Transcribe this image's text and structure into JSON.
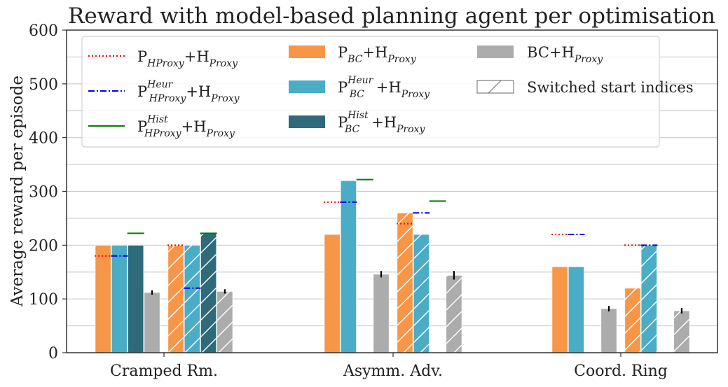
{
  "chart_data": {
    "type": "bar",
    "title": "Reward with model-based planning agent per optimisation",
    "ylabel": "Average reward per episode",
    "xlabel": "",
    "ylim": [
      0,
      600
    ],
    "yticks": [
      0,
      100,
      200,
      300,
      400,
      500,
      600
    ],
    "grid": true,
    "legend_position": "top",
    "categories": [
      "Cramped Rm.",
      "Asymm. Adv.",
      "Coord. Ring"
    ],
    "colors": {
      "P_BC": "#f79646",
      "P_BC_Heur": "#4bacc6",
      "P_BC_Hist": "#2e6a7a",
      "BC": "#acacac",
      "line_H": "#ff0000",
      "line_Heur": "#0000ee",
      "line_Hist": "#008000"
    },
    "legend": [
      {
        "key": "p_h",
        "base": "P",
        "sub": "H",
        "subsub": "Proxy",
        "sup": "",
        "tail": "+H",
        "tailsub": "Proxy",
        "style": "dotted-red"
      },
      {
        "key": "p_h_heur",
        "base": "P",
        "sub": "H",
        "subsub": "Proxy",
        "sup": "Heur",
        "tail": "+H",
        "tailsub": "Proxy",
        "style": "dashdot-blue"
      },
      {
        "key": "p_h_hist",
        "base": "P",
        "sub": "H",
        "subsub": "Proxy",
        "sup": "Hist",
        "tail": "+H",
        "tailsub": "Proxy",
        "style": "solid-green"
      },
      {
        "key": "p_bc",
        "base": "P",
        "sub": "BC",
        "subsub": "",
        "sup": "",
        "tail": "+H",
        "tailsub": "Proxy",
        "style": "bar-orange"
      },
      {
        "key": "p_bc_heur",
        "base": "P",
        "sub": "BC",
        "subsub": "",
        "sup": "Heur",
        "tail": "+H",
        "tailsub": "Proxy",
        "style": "bar-blue"
      },
      {
        "key": "p_bc_hist",
        "base": "P",
        "sub": "BC",
        "subsub": "",
        "sup": "Hist",
        "tail": "+H",
        "tailsub": "Proxy",
        "style": "bar-teal"
      },
      {
        "key": "bc",
        "base": "BC",
        "sub": "",
        "subsub": "",
        "sup": "",
        "tail": "+H",
        "tailsub": "Proxy",
        "style": "bar-grey"
      },
      {
        "key": "switched",
        "base": "Switched start indices",
        "sub": "",
        "subsub": "",
        "sup": "",
        "tail": "",
        "tailsub": "",
        "style": "hatch"
      }
    ],
    "bar_series": [
      {
        "name": "P_BC+H_Proxy",
        "color_key": "P_BC",
        "values": [
          200,
          220,
          160
        ]
      },
      {
        "name": "P_BC^Heur+H_Proxy",
        "color_key": "P_BC_Heur",
        "values": [
          200,
          320,
          160
        ]
      },
      {
        "name": "P_BC^Hist+H_Proxy",
        "color_key": "P_BC_Hist",
        "values": [
          200,
          null,
          null
        ]
      },
      {
        "name": "BC+H_Proxy",
        "color_key": "BC",
        "values": [
          112,
          146,
          82
        ],
        "errors": [
          4,
          6,
          5
        ]
      },
      {
        "name": "P_BC+H_Proxy (switched)",
        "color_key": "P_BC",
        "values": [
          200,
          260,
          120
        ],
        "hatched": true
      },
      {
        "name": "P_BC^Heur+H_Proxy (switched)",
        "color_key": "P_BC_Heur",
        "values": [
          200,
          220,
          200
        ],
        "hatched": true
      },
      {
        "name": "P_BC^Hist+H_Proxy (switched)",
        "color_key": "P_BC_Hist",
        "values": [
          222,
          null,
          null
        ],
        "hatched": true
      },
      {
        "name": "BC+H_Proxy (switched)",
        "color_key": "BC",
        "values": [
          114,
          144,
          78
        ],
        "errors": [
          4,
          8,
          5
        ],
        "hatched": true
      }
    ],
    "line_series": [
      {
        "name": "P_H_Proxy+H_Proxy",
        "color_key": "line_H",
        "style": "dotted",
        "values": [
          180,
          280,
          220
        ],
        "switched_values": [
          200,
          240,
          200
        ]
      },
      {
        "name": "P_H_Proxy^Heur+H_Proxy",
        "color_key": "line_Heur",
        "style": "dashdot",
        "values": [
          180,
          280,
          220
        ],
        "switched_values": [
          120,
          260,
          200
        ]
      },
      {
        "name": "P_H_Proxy^Hist+H_Proxy",
        "color_key": "line_Hist",
        "style": "solid",
        "values": [
          222,
          322,
          null
        ],
        "switched_values": [
          222,
          282,
          null
        ]
      }
    ]
  }
}
